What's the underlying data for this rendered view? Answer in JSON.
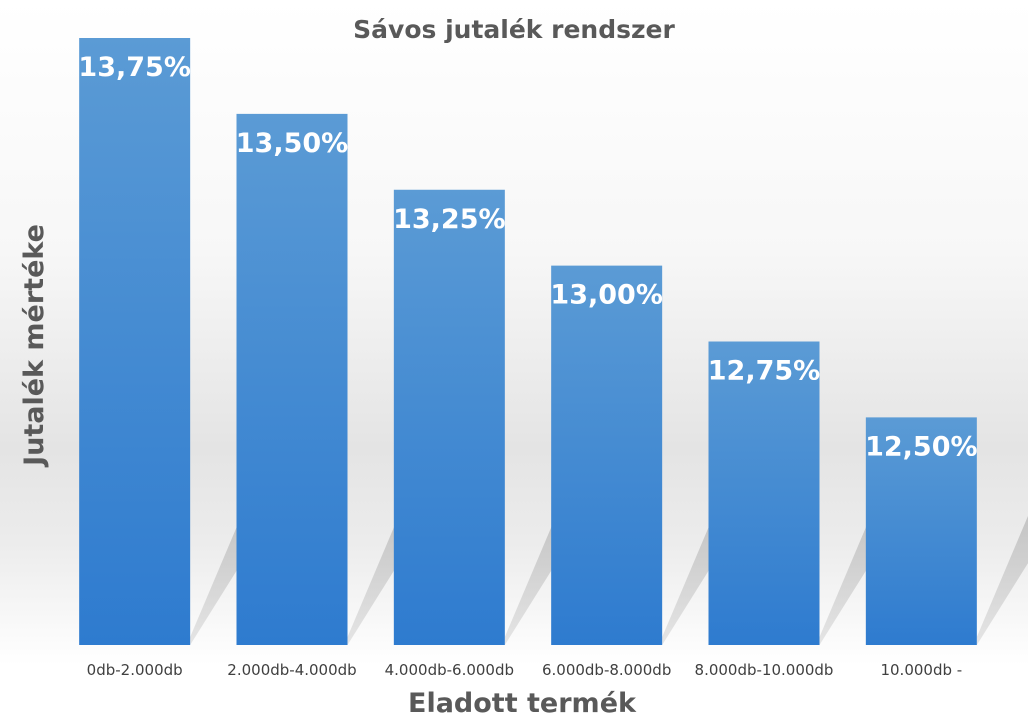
{
  "chart_data": {
    "type": "bar",
    "title": "Sávos jutalék rendszer",
    "xlabel": "Eladott termék",
    "ylabel": "Jutalék mértéke",
    "categories": [
      "0db-2.000db",
      "2.000db-4.000db",
      "4.000db-6.000db",
      "6.000db-8.000db",
      "8.000db-10.000db",
      "10.000db -"
    ],
    "values": [
      13.75,
      13.5,
      13.25,
      13.0,
      12.75,
      12.5
    ],
    "data_labels": [
      "13,75%",
      "13,50%",
      "13,25%",
      "13,00%",
      "12,75%",
      "12,50%"
    ],
    "ylim": [
      11.75,
      13.75
    ],
    "grid": false,
    "legend": "none",
    "colors": {
      "bar_top": "#5b9bd5",
      "bar_bottom": "#2e7bcf",
      "shadow": "#c6c6c6",
      "text": "#595959"
    }
  }
}
